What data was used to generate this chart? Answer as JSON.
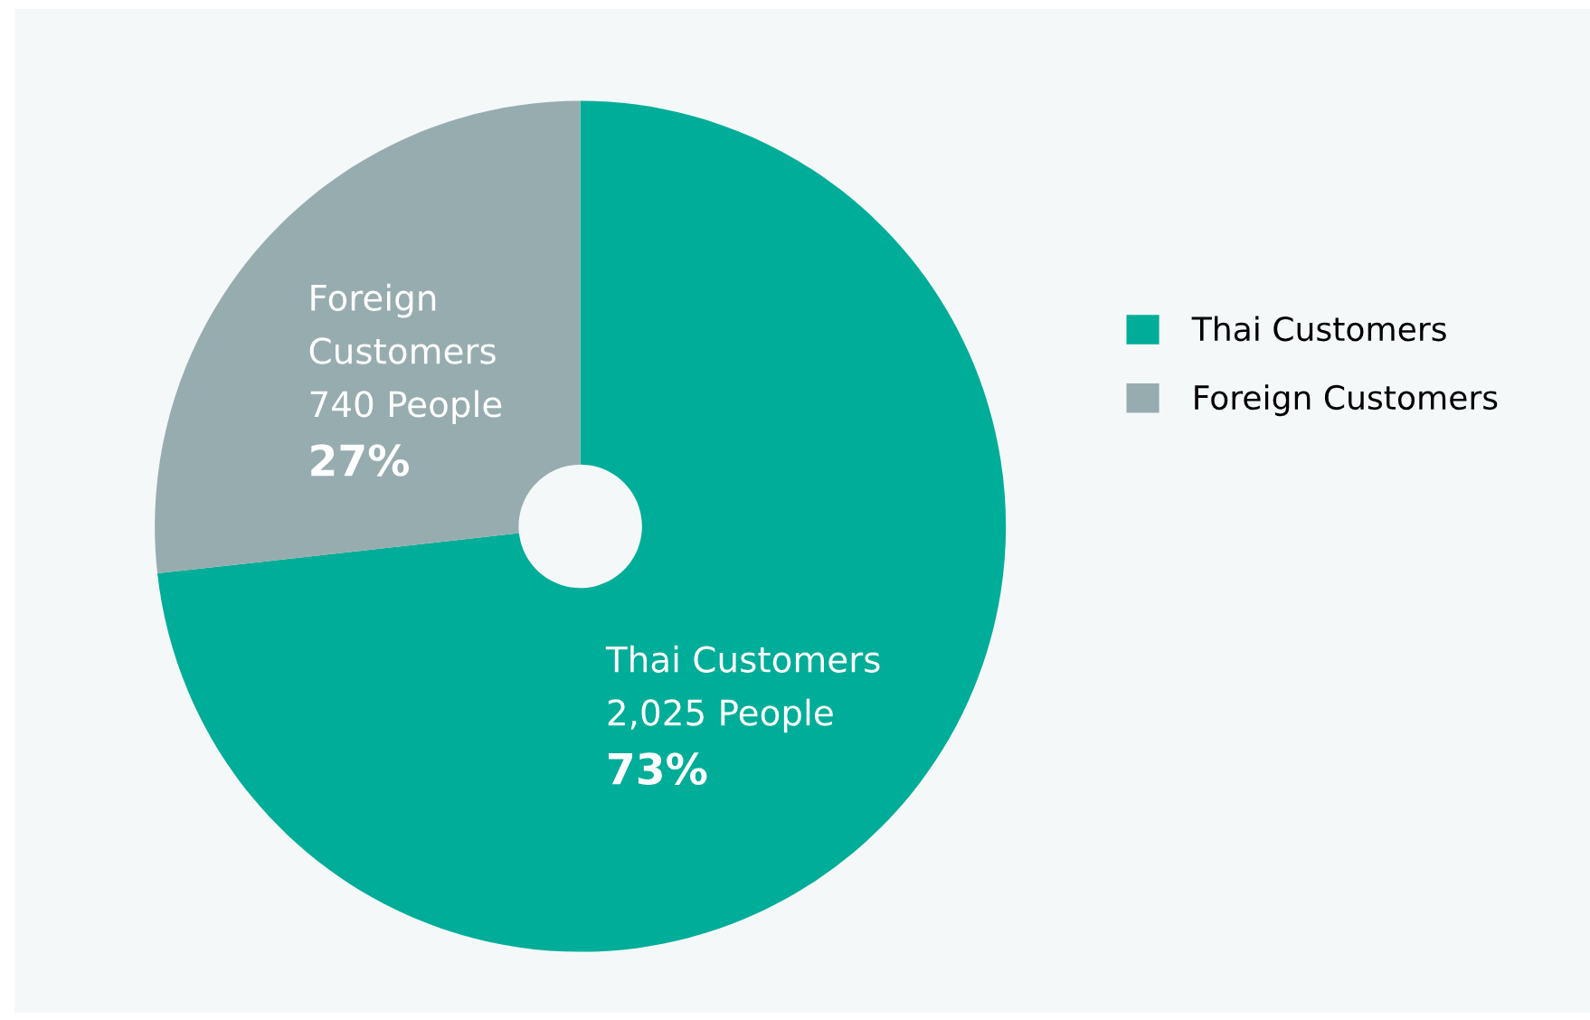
{
  "chart_data": {
    "type": "donut",
    "categories": [
      "Thai Customers",
      "Foreign Customers"
    ],
    "values": [
      2025,
      740
    ],
    "colors": [
      "#00ad98",
      "#97acaf"
    ],
    "value_labels": [
      "2,025 People\n73%",
      "740 People\n27%"
    ],
    "legend": "right"
  }
}
